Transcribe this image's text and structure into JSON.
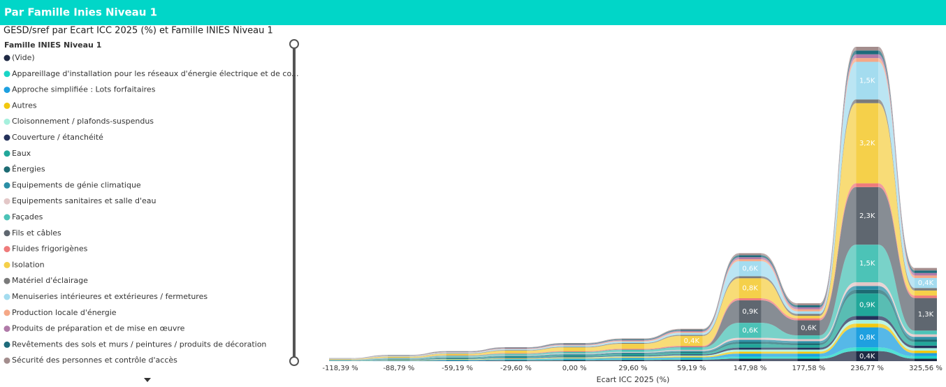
{
  "page_title": "Par Famille Inies Niveau 1",
  "chart_data": {
    "type": "ribbon",
    "title": "GESD/sref par Ecart ICC 2025 (%) et Famille INIES Niveau 1",
    "legend_title": "Famille INIES Niveau 1",
    "x_label": "Ecart ICC 2025 (%)",
    "categories": [
      "-118,39 %",
      "-88,79 %",
      "-59,19 %",
      "-29,60 %",
      "0,00 %",
      "29,60 %",
      "59,19 %",
      "147,98 %",
      "177,58 %",
      "236,77 %",
      "325,56 %"
    ],
    "series": [
      {
        "name": "(Vide)",
        "color": "#1f2a44",
        "values": [
          5,
          10,
          20,
          30,
          40,
          50,
          60,
          100,
          100,
          400,
          100
        ],
        "value_labels": [
          null,
          null,
          null,
          null,
          null,
          null,
          null,
          null,
          null,
          "0,4K",
          null
        ]
      },
      {
        "name": "Appareillage d'installation pour les réseaux d'énergie électrique et de co...",
        "color": "#1ad5c6",
        "values": [
          5,
          10,
          15,
          20,
          25,
          30,
          40,
          80,
          80,
          150,
          100
        ]
      },
      {
        "name": "Approche simplifiée : Lots forfaitaires",
        "color": "#1ea0e0",
        "values": [
          5,
          10,
          20,
          30,
          40,
          50,
          50,
          120,
          120,
          800,
          120
        ],
        "value_labels": [
          null,
          null,
          null,
          null,
          null,
          null,
          null,
          null,
          null,
          "0,8K",
          null
        ]
      },
      {
        "name": "Autres",
        "color": "#f2c80f",
        "values": [
          5,
          10,
          15,
          20,
          25,
          30,
          40,
          80,
          80,
          150,
          100
        ]
      },
      {
        "name": "Cloisonnement / plafonds-suspendus",
        "color": "#a6f0dd",
        "values": [
          5,
          10,
          15,
          20,
          25,
          30,
          40,
          80,
          80,
          150,
          100
        ]
      },
      {
        "name": "Couverture / étanchéité",
        "color": "#24315a",
        "values": [
          5,
          10,
          15,
          20,
          25,
          30,
          40,
          80,
          80,
          150,
          100
        ]
      },
      {
        "name": "Eaux",
        "color": "#21a79a",
        "values": [
          5,
          15,
          30,
          40,
          50,
          60,
          60,
          150,
          100,
          900,
          150
        ],
        "value_labels": [
          null,
          null,
          null,
          null,
          null,
          null,
          null,
          null,
          null,
          "0,9K",
          null
        ]
      },
      {
        "name": "Énergies",
        "color": "#1d6b73",
        "values": [
          5,
          10,
          15,
          20,
          25,
          30,
          40,
          80,
          80,
          150,
          100
        ]
      },
      {
        "name": "Equipements de génie climatique",
        "color": "#2b8fa6",
        "values": [
          5,
          10,
          15,
          20,
          25,
          30,
          40,
          80,
          80,
          150,
          100
        ]
      },
      {
        "name": "Equipements sanitaires et salle d'eau",
        "color": "#e3c7c7",
        "values": [
          5,
          10,
          15,
          20,
          25,
          30,
          40,
          80,
          80,
          150,
          100
        ]
      },
      {
        "name": "Façades",
        "color": "#4cc3b7",
        "values": [
          10,
          20,
          40,
          50,
          60,
          80,
          100,
          600,
          150,
          1500,
          150
        ],
        "value_labels": [
          null,
          null,
          null,
          null,
          null,
          null,
          null,
          "0,6K",
          null,
          "1,5K",
          null
        ]
      },
      {
        "name": "Fils et câbles",
        "color": "#5f6770",
        "values": [
          1,
          2,
          5,
          8,
          10,
          15,
          20,
          900,
          600,
          2300,
          1300
        ],
        "value_labels": [
          null,
          null,
          null,
          null,
          null,
          null,
          null,
          "0,9K",
          "0,6K",
          "2,3K",
          "1,3K"
        ]
      },
      {
        "name": "Fluides frigorigènes",
        "color": "#ef7b7b",
        "values": [
          5,
          10,
          15,
          20,
          25,
          30,
          40,
          80,
          80,
          150,
          100
        ]
      },
      {
        "name": "Isolation",
        "color": "#f5d04a",
        "values": [
          20,
          40,
          60,
          100,
          150,
          200,
          400,
          800,
          100,
          3200,
          200
        ],
        "value_labels": [
          null,
          null,
          null,
          null,
          null,
          null,
          "0,4K",
          "0,8K",
          null,
          "3,2K",
          null
        ]
      },
      {
        "name": "Matériel d'éclairage",
        "color": "#7a7a7a",
        "values": [
          5,
          10,
          15,
          20,
          25,
          30,
          40,
          80,
          80,
          150,
          100
        ]
      },
      {
        "name": "Menuiseries intérieures et extérieures / fermetures",
        "color": "#a4dcef",
        "values": [
          10,
          20,
          30,
          40,
          50,
          60,
          80,
          600,
          100,
          1500,
          400
        ],
        "value_labels": [
          null,
          null,
          null,
          null,
          null,
          null,
          null,
          "0,6K",
          null,
          "1,5K",
          "0,4K"
        ]
      },
      {
        "name": "Production locale d'énergie",
        "color": "#f5a887",
        "values": [
          5,
          10,
          15,
          20,
          25,
          30,
          40,
          80,
          80,
          150,
          100
        ]
      },
      {
        "name": "Produits de préparation et de mise en œuvre",
        "color": "#b07aa8",
        "values": [
          5,
          10,
          15,
          20,
          25,
          30,
          40,
          80,
          80,
          150,
          100
        ]
      },
      {
        "name": "Revêtements des sols et murs / peintures / produits de décoration",
        "color": "#1e6b7b",
        "values": [
          5,
          10,
          15,
          20,
          25,
          30,
          40,
          80,
          80,
          150,
          100
        ]
      },
      {
        "name": "Sécurité des personnes et contrôle d'accès",
        "color": "#a38d8d",
        "values": [
          5,
          10,
          15,
          20,
          25,
          30,
          40,
          80,
          80,
          150,
          100
        ]
      }
    ]
  }
}
